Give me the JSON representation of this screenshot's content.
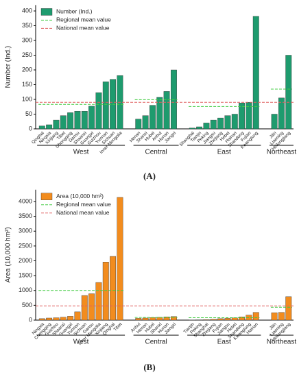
{
  "chart_data": [
    {
      "type": "bar",
      "panel_label": "(A)",
      "ylabel": "Number (Ind.)",
      "ylim": [
        0,
        420
      ],
      "yticks": [
        0,
        50,
        100,
        150,
        200,
        250,
        300,
        350,
        400
      ],
      "series": {
        "name": "Number (Ind.)",
        "color": "#1e9b6e"
      },
      "regional_mean": {
        "name": "Regional mean value",
        "color": "#44cc44"
      },
      "national_mean": {
        "name": "National mean value",
        "color": "#e06060",
        "value": 90
      },
      "groups": [
        {
          "name": "West",
          "regional_mean": 83,
          "categories": [
            "Qinghai",
            "Ningxia",
            "Xinjiang",
            "Tibet",
            "Chongqing",
            "Gansu",
            "Shaanxi",
            "Guangxi",
            "Guizhou",
            "Yunnan",
            "Sichuan",
            "Inner Mongolia"
          ],
          "values": [
            10,
            14,
            30,
            45,
            55,
            60,
            60,
            77,
            123,
            160,
            168,
            181
          ]
        },
        {
          "name": "Central",
          "regional_mean": 99,
          "categories": [
            "Henan",
            "Shanxi",
            "Hubei",
            "Anhui",
            "Hunan",
            "Jiangxi"
          ],
          "values": [
            33,
            45,
            80,
            107,
            127,
            200
          ]
        },
        {
          "name": "East",
          "regional_mean": 76,
          "categories": [
            "Shanghai",
            "Tianjin",
            "Peking",
            "Jiangsu",
            "Zhejiang",
            "Hebei",
            "Hainan",
            "Shandong",
            "Fujian",
            "Kwangtung"
          ],
          "values": [
            3,
            7,
            20,
            30,
            37,
            45,
            50,
            88,
            90,
            382
          ]
        },
        {
          "name": "Northeast",
          "regional_mean": 135,
          "categories": [
            "Jilin",
            "Liaoning",
            "Heilongjiang"
          ],
          "values": [
            50,
            105,
            250
          ]
        }
      ]
    },
    {
      "type": "bar",
      "panel_label": "(B)",
      "ylabel": "Area (10,000 hm²)",
      "ylim": [
        0,
        4400
      ],
      "yticks": [
        0,
        500,
        1000,
        1500,
        2000,
        2500,
        3000,
        3500,
        4000
      ],
      "series": {
        "name": "Area (10,000 hm²)",
        "color": "#f28c1e"
      },
      "regional_mean": {
        "name": "Regional mean value",
        "color": "#44cc44"
      },
      "national_mean": {
        "name": "National mean value",
        "color": "#e06060",
        "value": 480
      },
      "groups": [
        {
          "name": "West",
          "regional_mean": 1000,
          "categories": [
            "Ningxia",
            "Chongqing",
            "Guizhou",
            "Shaanxi",
            "Guangxi",
            "Yunnan",
            "Sichuan",
            "Gansu",
            "Inner Mongolia",
            "Xinjiang",
            "Qinghai",
            "Tibet"
          ],
          "values": [
            50,
            70,
            80,
            100,
            130,
            280,
            830,
            890,
            1270,
            1960,
            2150,
            4140
          ]
        },
        {
          "name": "Central",
          "regional_mean": 90,
          "categories": [
            "Anhui",
            "Henan",
            "Hubei",
            "Shanxi",
            "Hunan",
            "Jiangxi"
          ],
          "values": [
            60,
            70,
            85,
            95,
            110,
            120
          ]
        },
        {
          "name": "East",
          "regional_mean": 80,
          "categories": [
            "Tianjin",
            "Peking",
            "Shanghai",
            "Zhejiang",
            "Fujian",
            "Jiangsu",
            "Hebei",
            "Shandong",
            "Kwangtung",
            "Hainan"
          ],
          "values": [
            5,
            10,
            15,
            30,
            50,
            60,
            75,
            110,
            170,
            260
          ]
        },
        {
          "name": "Northeast",
          "regional_mean": 433,
          "categories": [
            "Jilin",
            "Liaoning",
            "Heilongjiang"
          ],
          "values": [
            250,
            260,
            790
          ]
        }
      ]
    }
  ]
}
